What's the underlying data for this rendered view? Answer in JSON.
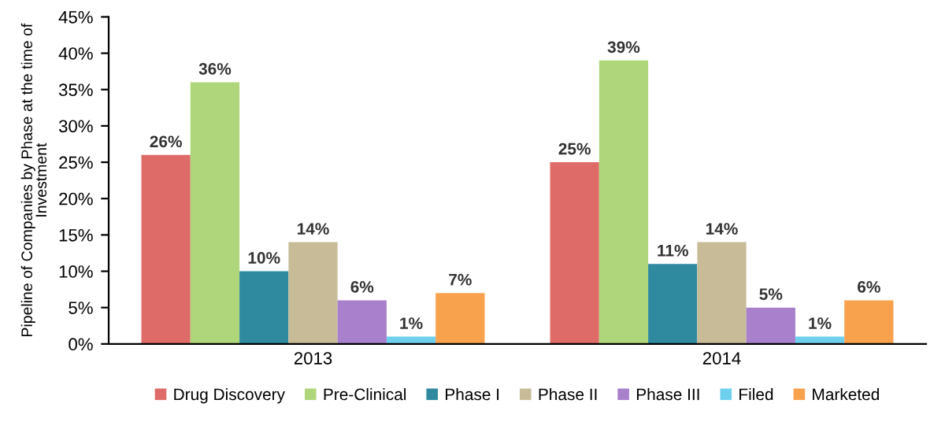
{
  "chart_data": {
    "type": "bar",
    "ylabel": "Pipeline of Companies by Phase at the time of\nInvestment",
    "categories": [
      "2013",
      "2014"
    ],
    "series": [
      {
        "name": "Drug Discovery",
        "color": "#df6b68",
        "values": [
          26,
          25
        ],
        "value_labels": [
          "26%",
          "25%"
        ]
      },
      {
        "name": "Pre-Clinical",
        "color": "#afd67a",
        "values": [
          36,
          39
        ],
        "value_labels": [
          "36%",
          "39%"
        ]
      },
      {
        "name": "Phase I",
        "color": "#2f8aa0",
        "values": [
          10,
          11
        ],
        "value_labels": [
          "10%",
          "11%"
        ]
      },
      {
        "name": "Phase II",
        "color": "#c8bc98",
        "values": [
          14,
          14
        ],
        "value_labels": [
          "14%",
          "14%"
        ]
      },
      {
        "name": "Phase III",
        "color": "#a880cc",
        "values": [
          6,
          5
        ],
        "value_labels": [
          "6%",
          "5%"
        ]
      },
      {
        "name": "Filed",
        "color": "#6fd0ee",
        "values": [
          1,
          1
        ],
        "value_labels": [
          "1%",
          "1%"
        ]
      },
      {
        "name": "Marketed",
        "color": "#f9a24e",
        "values": [
          7,
          6
        ],
        "value_labels": [
          "7%",
          "6%"
        ]
      }
    ],
    "ylim": [
      0,
      45
    ],
    "yticks": [
      {
        "value": 0,
        "label": "0%"
      },
      {
        "value": 5,
        "label": "5%"
      },
      {
        "value": 10,
        "label": "10%"
      },
      {
        "value": 15,
        "label": "15%"
      },
      {
        "value": 20,
        "label": "20%"
      },
      {
        "value": 25,
        "label": "25%"
      },
      {
        "value": 30,
        "label": "30%"
      },
      {
        "value": 35,
        "label": "35%"
      },
      {
        "value": 40,
        "label": "40%"
      },
      {
        "value": 45,
        "label": "45%"
      }
    ],
    "legend": "bottom",
    "grid": false
  }
}
